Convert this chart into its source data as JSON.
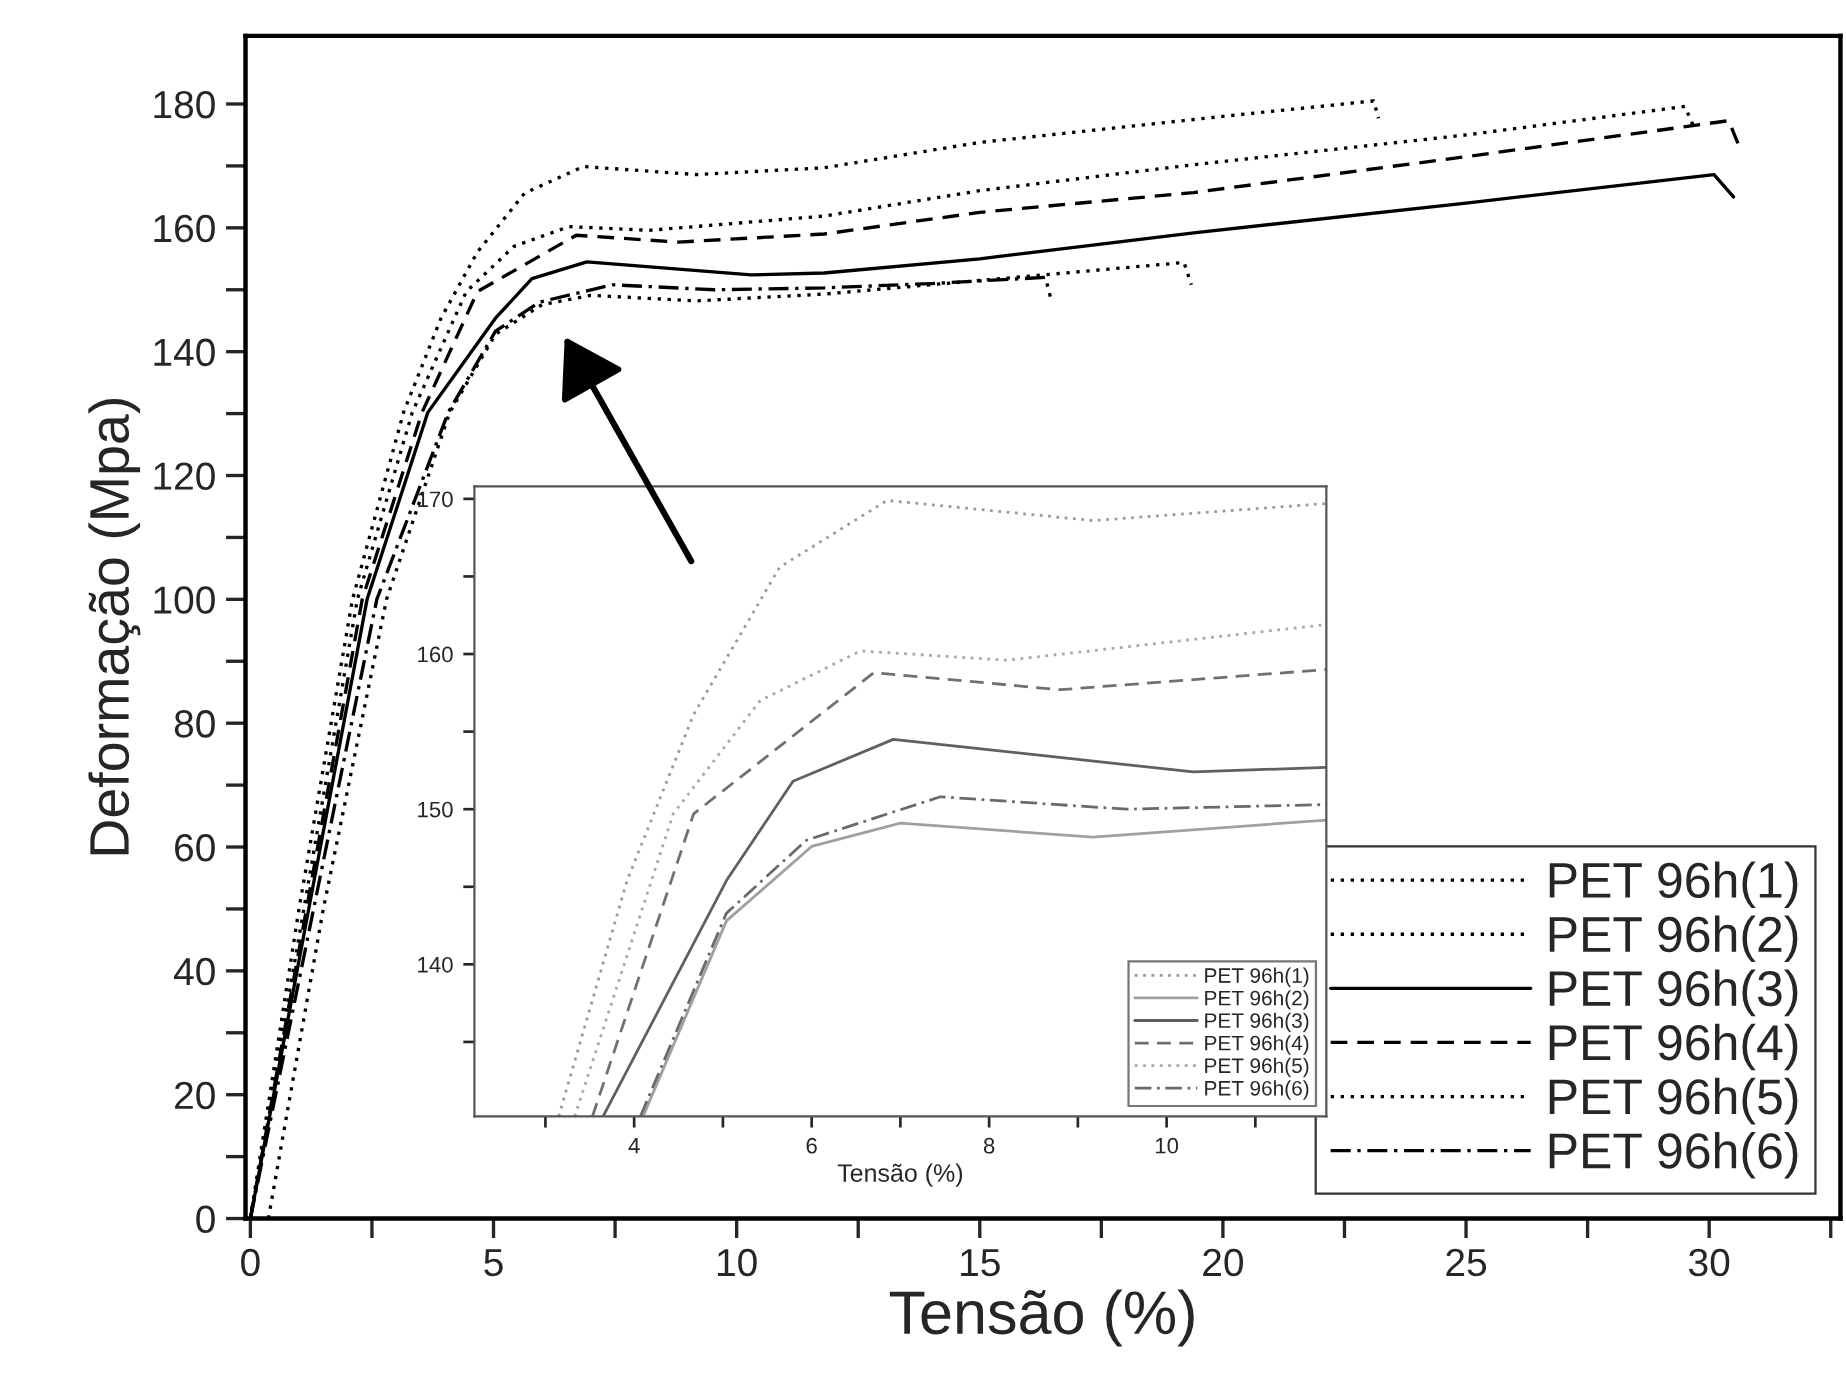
{
  "chart_data": [
    {
      "type": "line",
      "xlabel": "Tensão (%)",
      "ylabel": "Deformação (Mpa)",
      "xlim": [
        -0.1,
        32.7
      ],
      "ylim": [
        0,
        191
      ],
      "xticks": [
        0,
        {
          "value": 2.5,
          "label": null
        },
        5,
        {
          "value": 7.5,
          "label": null
        },
        10,
        {
          "value": 12.5,
          "label": null
        },
        15,
        {
          "value": 17.5,
          "label": null
        },
        20,
        {
          "value": 22.5,
          "label": null
        },
        25,
        {
          "value": 27.5,
          "label": null
        },
        30,
        {
          "value": 32.5,
          "label": null
        }
      ],
      "yticks": [
        0,
        {
          "value": 10,
          "label": null
        },
        20,
        {
          "value": 30,
          "label": null
        },
        40,
        {
          "value": 50,
          "label": null
        },
        60,
        {
          "value": 70,
          "label": null
        },
        80,
        {
          "value": 90,
          "label": null
        },
        100,
        {
          "value": 110,
          "label": null
        },
        120,
        {
          "value": 130,
          "label": null
        },
        140,
        {
          "value": 150,
          "label": null
        },
        160,
        {
          "value": 170,
          "label": null
        },
        180
      ],
      "legend": "bottom right",
      "grid": false,
      "series": [
        {
          "name": "PET 96h(1)",
          "color": "#000000",
          "line_style": "dotted",
          "x": [
            0,
            1.0,
            2.1,
            3.15,
            3.92,
            4.67,
            5.64,
            6.85,
            9.17,
            11.8,
            15,
            20,
            23.1,
            23.2
          ],
          "values": [
            0,
            50,
            100,
            130.2,
            145.4,
            156.1,
            165.6,
            169.9,
            168.6,
            169.7,
            173.8,
            178,
            180.5,
            177.7
          ]
        },
        {
          "name": "PET 96h(2)",
          "color": "#000000",
          "line_style": "dotted",
          "x": [
            0.37,
            1.5,
            2.8,
            4.1,
            5.04,
            6.0,
            7.0,
            9.17,
            11.8,
            15,
            19.2,
            19.35
          ],
          "values": [
            0,
            50,
            100,
            130.2,
            142.8,
            147.6,
            149.1,
            148.2,
            149.3,
            151.5,
            154.4,
            150.8
          ]
        },
        {
          "name": "PET 96h(3)",
          "color": "#000000",
          "line_style": "solid",
          "x": [
            0,
            1.2,
            2.4,
            3.65,
            5.04,
            5.79,
            6.92,
            10.3,
            11.8,
            15,
            19.4,
            25,
            30.1,
            30.5
          ],
          "values": [
            0,
            50,
            100,
            130.2,
            145.4,
            151.8,
            154.5,
            152.4,
            152.7,
            155,
            159.2,
            164,
            168.6,
            165
          ]
        },
        {
          "name": "PET 96h(4)",
          "color": "#000000",
          "line_style": "dashed",
          "x": [
            0,
            1.2,
            2.3,
            3.53,
            4.67,
            6.7,
            8.8,
            11.8,
            15,
            19.4,
            25,
            30.4,
            30.6
          ],
          "values": [
            0,
            52,
            100,
            130.2,
            149.7,
            158.8,
            157.7,
            159,
            162.5,
            165.7,
            171.5,
            177.3,
            173.5
          ]
        },
        {
          "name": "PET 96h(5)",
          "color": "#000000",
          "line_style": "dotted",
          "x": [
            0,
            1.1,
            2.2,
            3.33,
            4.44,
            5.42,
            6.55,
            8.2,
            11.8,
            15,
            19.4,
            25,
            29.5,
            29.7
          ],
          "values": [
            0,
            50,
            100,
            130.2,
            149.7,
            157,
            160.2,
            159.6,
            161.9,
            166,
            170.2,
            175,
            179.6,
            176
          ]
        },
        {
          "name": "PET 96h(6)",
          "color": "#000000",
          "line_style": "dashdot",
          "x": [
            0,
            1.3,
            2.6,
            4.07,
            5.04,
            5.94,
            7.45,
            9.55,
            11.8,
            14,
            16.35,
            16.45
          ],
          "values": [
            0,
            50,
            100,
            130.2,
            143.3,
            148,
            150.8,
            150,
            150.3,
            151,
            152,
            148.9
          ]
        }
      ]
    },
    {
      "type": "line",
      "xlabel": "Tensão (%)",
      "xlim": [
        2.2,
        11.8
      ],
      "ylim": [
        130.2,
        170.8
      ],
      "xticks": [
        {
          "value": 3,
          "label": null
        },
        4,
        {
          "value": 5,
          "label": null
        },
        6,
        {
          "value": 7,
          "label": null
        },
        8,
        {
          "value": 9,
          "label": null
        },
        10,
        {
          "value": 11,
          "label": null
        }
      ],
      "yticks": [
        {
          "value": 135,
          "label": null
        },
        140,
        {
          "value": 145,
          "label": null
        },
        150,
        {
          "value": 155,
          "label": null
        },
        160,
        {
          "value": 165,
          "label": null
        },
        170
      ],
      "legend": "bottom right",
      "grid": false,
      "series": [
        {
          "name": "PET 96h(1)",
          "color": "#9a9a9a",
          "line_style": "dotted",
          "x": [
            3.15,
            3.92,
            4.67,
            5.64,
            6.85,
            9.17,
            11.8
          ],
          "values": [
            130.2,
            145.4,
            156.1,
            165.6,
            169.9,
            168.6,
            169.7
          ]
        },
        {
          "name": "PET 96h(2)",
          "color": "#a0a0a0",
          "line_style": "solid",
          "x": [
            4.1,
            5.04,
            6.0,
            7.0,
            9.17,
            11.8
          ],
          "values": [
            130.2,
            142.8,
            147.6,
            149.1,
            148.2,
            149.3
          ]
        },
        {
          "name": "PET 96h(3)",
          "color": "#606060",
          "line_style": "solid",
          "x": [
            3.65,
            5.04,
            5.79,
            6.92,
            10.3,
            11.8
          ],
          "values": [
            130.2,
            145.4,
            151.8,
            154.5,
            152.4,
            152.7
          ]
        },
        {
          "name": "PET 96h(4)",
          "color": "#707070",
          "line_style": "dashed",
          "x": [
            3.53,
            4.67,
            6.7,
            8.8,
            11.8
          ],
          "values": [
            130.2,
            149.7,
            158.8,
            157.7,
            159
          ]
        },
        {
          "name": "PET 96h(5)",
          "color": "#a8a8a8",
          "line_style": "dotted",
          "x": [
            3.33,
            4.44,
            5.42,
            6.55,
            8.2,
            11.8
          ],
          "values": [
            130.2,
            149.7,
            157,
            160.2,
            159.6,
            161.9
          ]
        },
        {
          "name": "PET 96h(6)",
          "color": "#6a6a6a",
          "line_style": "dashdot",
          "x": [
            4.07,
            5.04,
            5.94,
            7.45,
            9.55,
            11.8
          ],
          "values": [
            130.2,
            143.3,
            148,
            150.8,
            150,
            150.3
          ]
        }
      ]
    }
  ]
}
